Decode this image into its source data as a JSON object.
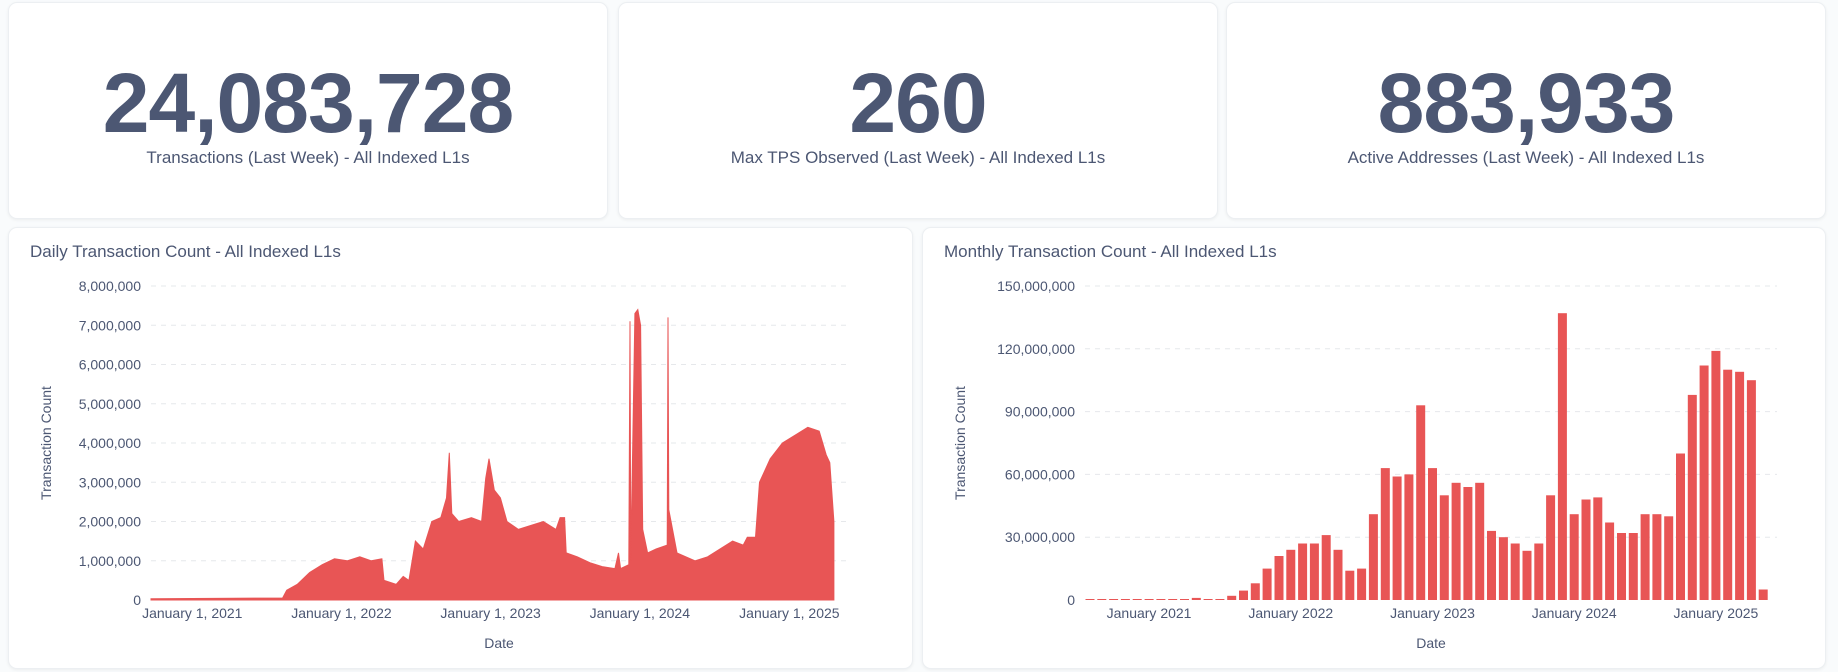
{
  "kpis": [
    {
      "value": "24,083,728",
      "label": "Transactions (Last Week) - All Indexed L1s"
    },
    {
      "value": "260",
      "label": "Max TPS Observed (Last Week) - All Indexed L1s"
    },
    {
      "value": "883,933",
      "label": "Active Addresses (Last Week) - All Indexed L1s"
    }
  ],
  "colors": {
    "bar": "#e85555",
    "text": "#4c5773",
    "grid": "#e6e8eb"
  },
  "chart_data": [
    {
      "type": "area",
      "title": "Daily Transaction Count - All Indexed L1s",
      "xlabel": "Date",
      "ylabel": "Transaction Count",
      "ylim": [
        0,
        8000000
      ],
      "xlim": [
        "2020-09-22",
        "2025-05-22"
      ],
      "grid": true,
      "yticks": [
        "0",
        "1,000,000",
        "2,000,000",
        "3,000,000",
        "4,000,000",
        "5,000,000",
        "6,000,000",
        "7,000,000",
        "8,000,000"
      ],
      "xticks": [
        {
          "date": "2021-01-01",
          "label": "January 1, 2021"
        },
        {
          "date": "2022-01-01",
          "label": "January 1, 2022"
        },
        {
          "date": "2023-01-01",
          "label": "January 1, 2023"
        },
        {
          "date": "2024-01-01",
          "label": "January 1, 2024"
        },
        {
          "date": "2025-01-01",
          "label": "January 1, 2025"
        }
      ],
      "points": [
        [
          "2020-09-22",
          30000
        ],
        [
          "2021-08-10",
          50000
        ],
        [
          "2021-08-20",
          250000
        ],
        [
          "2021-09-15",
          400000
        ],
        [
          "2021-10-15",
          700000
        ],
        [
          "2021-11-15",
          900000
        ],
        [
          "2021-12-15",
          1050000
        ],
        [
          "2022-01-15",
          1000000
        ],
        [
          "2022-02-15",
          1100000
        ],
        [
          "2022-03-15",
          1000000
        ],
        [
          "2022-04-10",
          1050000
        ],
        [
          "2022-04-15",
          500000
        ],
        [
          "2022-05-15",
          400000
        ],
        [
          "2022-06-01",
          600000
        ],
        [
          "2022-06-15",
          500000
        ],
        [
          "2022-07-01",
          1500000
        ],
        [
          "2022-07-20",
          1300000
        ],
        [
          "2022-08-10",
          2000000
        ],
        [
          "2022-09-01",
          2100000
        ],
        [
          "2022-09-15",
          2600000
        ],
        [
          "2022-09-22",
          3750000
        ],
        [
          "2022-09-28",
          2200000
        ],
        [
          "2022-10-15",
          2000000
        ],
        [
          "2022-11-15",
          2100000
        ],
        [
          "2022-12-10",
          2000000
        ],
        [
          "2022-12-20",
          3100000
        ],
        [
          "2022-12-28",
          3600000
        ],
        [
          "2023-01-10",
          2800000
        ],
        [
          "2023-01-25",
          2600000
        ],
        [
          "2023-02-10",
          2000000
        ],
        [
          "2023-03-10",
          1800000
        ],
        [
          "2023-04-10",
          1900000
        ],
        [
          "2023-05-10",
          2000000
        ],
        [
          "2023-06-10",
          1800000
        ],
        [
          "2023-06-20",
          2100000
        ],
        [
          "2023-07-01",
          2100000
        ],
        [
          "2023-07-05",
          1200000
        ],
        [
          "2023-08-01",
          1100000
        ],
        [
          "2023-09-01",
          950000
        ],
        [
          "2023-10-01",
          850000
        ],
        [
          "2023-11-01",
          800000
        ],
        [
          "2023-11-10",
          1200000
        ],
        [
          "2023-11-15",
          800000
        ],
        [
          "2023-12-05",
          900000
        ],
        [
          "2023-12-08",
          7100000
        ],
        [
          "2023-12-10",
          1000000
        ],
        [
          "2023-12-20",
          7300000
        ],
        [
          "2023-12-27",
          7400000
        ],
        [
          "2024-01-03",
          7000000
        ],
        [
          "2024-01-08",
          1800000
        ],
        [
          "2024-01-20",
          1200000
        ],
        [
          "2024-02-10",
          1300000
        ],
        [
          "2024-03-08",
          1400000
        ],
        [
          "2024-03-10",
          7200000
        ],
        [
          "2024-03-12",
          2300000
        ],
        [
          "2024-04-01",
          1200000
        ],
        [
          "2024-05-15",
          1000000
        ],
        [
          "2024-06-15",
          1100000
        ],
        [
          "2024-07-15",
          1300000
        ],
        [
          "2024-08-15",
          1500000
        ],
        [
          "2024-09-10",
          1400000
        ],
        [
          "2024-09-20",
          1600000
        ],
        [
          "2024-10-10",
          1600000
        ],
        [
          "2024-10-20",
          3000000
        ],
        [
          "2024-11-15",
          3600000
        ],
        [
          "2024-12-15",
          4000000
        ],
        [
          "2025-01-15",
          4200000
        ],
        [
          "2025-02-15",
          4400000
        ],
        [
          "2025-03-15",
          4300000
        ],
        [
          "2025-04-01",
          3700000
        ],
        [
          "2025-04-10",
          3500000
        ],
        [
          "2025-04-20",
          2000000
        ]
      ]
    },
    {
      "type": "bar",
      "title": "Monthly Transaction Count - All Indexed L1s",
      "xlabel": "Date",
      "ylabel": "Transaction Count",
      "ylim": [
        0,
        150000000
      ],
      "grid": true,
      "yticks": [
        "0",
        "30,000,000",
        "60,000,000",
        "90,000,000",
        "120,000,000",
        "150,000,000"
      ],
      "xticks": [
        {
          "month": "2021-01",
          "label": "January 2021"
        },
        {
          "month": "2022-01",
          "label": "January 2022"
        },
        {
          "month": "2023-01",
          "label": "January 2023"
        },
        {
          "month": "2024-01",
          "label": "January 2024"
        },
        {
          "month": "2025-01",
          "label": "January 2025"
        }
      ],
      "categories": [
        "2020-08",
        "2020-09",
        "2020-10",
        "2020-11",
        "2020-12",
        "2021-01",
        "2021-02",
        "2021-03",
        "2021-04",
        "2021-05",
        "2021-06",
        "2021-07",
        "2021-08",
        "2021-09",
        "2021-10",
        "2021-11",
        "2021-12",
        "2022-01",
        "2022-02",
        "2022-03",
        "2022-04",
        "2022-05",
        "2022-06",
        "2022-07",
        "2022-08",
        "2022-09",
        "2022-10",
        "2022-11",
        "2022-12",
        "2023-01",
        "2023-02",
        "2023-03",
        "2023-04",
        "2023-05",
        "2023-06",
        "2023-07",
        "2023-08",
        "2023-09",
        "2023-10",
        "2023-11",
        "2023-12",
        "2024-01",
        "2024-02",
        "2024-03",
        "2024-04",
        "2024-05",
        "2024-06",
        "2024-07",
        "2024-08",
        "2024-09",
        "2024-10",
        "2024-11",
        "2024-12",
        "2025-01",
        "2025-02",
        "2025-03",
        "2025-04",
        "2025-05"
      ],
      "values": [
        500000,
        500000,
        500000,
        500000,
        500000,
        500000,
        500000,
        500000,
        500000,
        1000000,
        500000,
        500000,
        2000000,
        4500000,
        8000000,
        15000000,
        21000000,
        24000000,
        27000000,
        27000000,
        31000000,
        24000000,
        14000000,
        15000000,
        41000000,
        63000000,
        59000000,
        60000000,
        93000000,
        63000000,
        50000000,
        56000000,
        54000000,
        56000000,
        33000000,
        30000000,
        27000000,
        23500000,
        27000000,
        50000000,
        137000000,
        41000000,
        48000000,
        49000000,
        37000000,
        32000000,
        32000000,
        41000000,
        41000000,
        40000000,
        70000000,
        98000000,
        112000000,
        119000000,
        110000000,
        109000000,
        105000000,
        5000000
      ]
    }
  ]
}
